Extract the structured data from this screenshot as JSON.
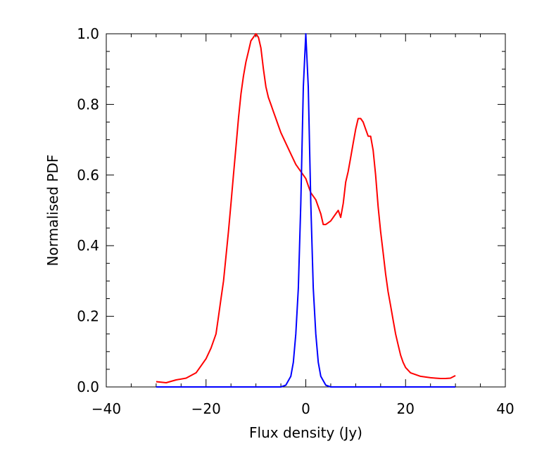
{
  "chart_data": {
    "type": "line",
    "title": "",
    "xlabel": "Flux density (Jy)",
    "ylabel": "Normalised PDF",
    "xlim": [
      -40,
      40
    ],
    "ylim": [
      0.0,
      1.0
    ],
    "x_ticks": [
      -40,
      -20,
      0,
      20,
      40
    ],
    "x_tick_labels": [
      "−40",
      "−20",
      "0",
      "20",
      "40"
    ],
    "y_ticks": [
      0.0,
      0.2,
      0.4,
      0.6,
      0.8,
      1.0
    ],
    "y_tick_labels": [
      "0.0",
      "0.2",
      "0.4",
      "0.6",
      "0.8",
      "1.0"
    ],
    "grid": false,
    "legend": "none",
    "series": [
      {
        "color": "#ff0000",
        "x": [
          -30,
          -28,
          -26,
          -24,
          -22,
          -21,
          -20,
          -19,
          -18,
          -17.5,
          -17,
          -16.5,
          -16,
          -15.5,
          -15,
          -14.5,
          -14,
          -13.5,
          -13,
          -12.5,
          -12,
          -11.5,
          -11,
          -10.5,
          -10,
          -9.5,
          -9,
          -8.5,
          -8,
          -7.5,
          -7,
          -6.5,
          -6,
          -5.5,
          -5,
          -4,
          -3,
          -2,
          -1,
          0,
          0.5,
          1,
          2,
          3,
          3.5,
          4,
          5,
          6,
          6.5,
          7,
          7.5,
          8,
          8.5,
          9,
          9.5,
          10,
          10.5,
          11,
          11.5,
          12,
          12.5,
          13,
          13.5,
          14,
          14.5,
          15,
          15.5,
          16,
          16.5,
          17,
          17.5,
          18,
          18.5,
          19,
          19.5,
          20,
          21,
          22,
          23,
          24,
          25,
          26,
          27,
          28,
          29,
          30
        ],
        "y": [
          0.015,
          0.012,
          0.02,
          0.025,
          0.04,
          0.06,
          0.08,
          0.11,
          0.15,
          0.2,
          0.25,
          0.3,
          0.37,
          0.44,
          0.52,
          0.6,
          0.68,
          0.76,
          0.83,
          0.88,
          0.92,
          0.95,
          0.98,
          0.99,
          1.0,
          0.99,
          0.96,
          0.9,
          0.85,
          0.82,
          0.8,
          0.78,
          0.76,
          0.74,
          0.72,
          0.69,
          0.66,
          0.63,
          0.61,
          0.59,
          0.57,
          0.55,
          0.53,
          0.49,
          0.46,
          0.46,
          0.47,
          0.49,
          0.5,
          0.48,
          0.52,
          0.58,
          0.61,
          0.65,
          0.69,
          0.73,
          0.76,
          0.76,
          0.75,
          0.73,
          0.71,
          0.71,
          0.67,
          0.6,
          0.51,
          0.44,
          0.38,
          0.32,
          0.27,
          0.23,
          0.19,
          0.15,
          0.12,
          0.09,
          0.07,
          0.055,
          0.04,
          0.035,
          0.03,
          0.028,
          0.026,
          0.025,
          0.024,
          0.024,
          0.025,
          0.032
        ]
      },
      {
        "color": "#0000ff",
        "x": [
          -30,
          -10,
          -5,
          -4,
          -3,
          -2.5,
          -2,
          -1.5,
          -1,
          -0.5,
          0,
          0.5,
          1,
          1.5,
          2,
          2.5,
          3,
          4,
          5,
          10,
          30
        ],
        "y": [
          0,
          0,
          0,
          0.005,
          0.03,
          0.07,
          0.15,
          0.28,
          0.52,
          0.85,
          1.0,
          0.85,
          0.52,
          0.28,
          0.15,
          0.07,
          0.03,
          0.005,
          0,
          0,
          0
        ]
      }
    ]
  }
}
